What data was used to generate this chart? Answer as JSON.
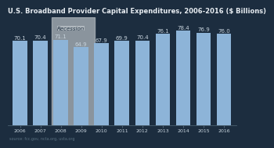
{
  "title": "U.S. Broadband Provider Capital Expenditures, 2006-2016 ($ Billions)",
  "years": [
    "2006",
    "2007",
    "2008",
    "2009",
    "2010",
    "2011",
    "2012",
    "2013",
    "2014",
    "2015",
    "2016"
  ],
  "values": [
    70.1,
    70.4,
    71.1,
    64.9,
    67.9,
    69.9,
    70.4,
    76.1,
    78.4,
    76.9,
    76.0
  ],
  "bar_color": "#8db4d8",
  "recession_bar_color": "#8db4d8",
  "recession_bg_color": "#b0b8be",
  "recession_years": [
    "2008",
    "2009"
  ],
  "recession_label": "Recession",
  "source_text": "source: fcc.gov, ncta.org, usta.org",
  "title_color": "#e8edf2",
  "label_color": "#c8d4de",
  "background_color": "#1c2d3f",
  "plot_bg_color": "#1c2d3f",
  "axis_color": "#4a6070",
  "ylim": [
    0,
    90
  ],
  "bar_label_fontsize": 5.0,
  "title_fontsize": 6.0,
  "source_fontsize": 3.5
}
